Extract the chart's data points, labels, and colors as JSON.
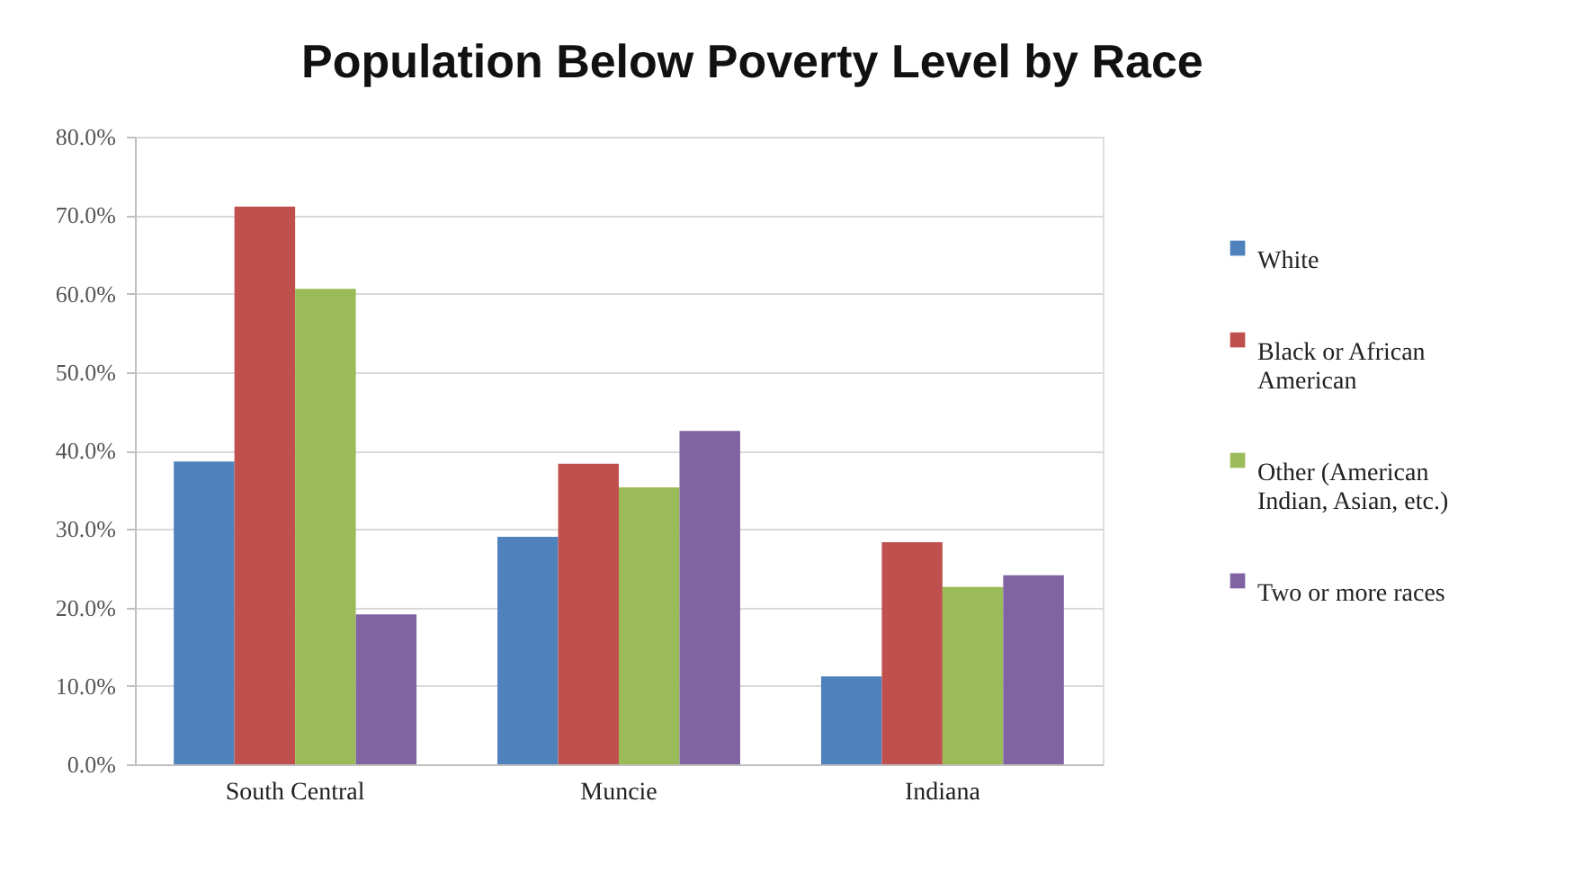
{
  "chart_data": {
    "type": "bar",
    "title": "Population Below Poverty Level by Race",
    "categories": [
      "South Central",
      "Muncie",
      "Indiana"
    ],
    "series": [
      {
        "name": "White",
        "color": "#4f81bd",
        "values": [
          38.6,
          29.0,
          11.2
        ]
      },
      {
        "name": "Black or African American",
        "color": "#c0504d",
        "values": [
          71.1,
          38.3,
          28.3
        ]
      },
      {
        "name": "Other (American Indian, Asian, etc.)",
        "color": "#9bbb59",
        "values": [
          60.6,
          35.3,
          22.6
        ]
      },
      {
        "name": "Two or more races",
        "color": "#8064a2",
        "values": [
          19.1,
          42.5,
          24.1
        ]
      }
    ],
    "ylim": [
      0,
      80
    ],
    "yticks": [
      {
        "value": 0,
        "label": "0.0%"
      },
      {
        "value": 10,
        "label": "10.0%"
      },
      {
        "value": 20,
        "label": "20.0%"
      },
      {
        "value": 30,
        "label": "30.0%"
      },
      {
        "value": 40,
        "label": "40.0%"
      },
      {
        "value": 50,
        "label": "50.0%"
      },
      {
        "value": 60,
        "label": "60.0%"
      },
      {
        "value": 70,
        "label": "70.0%"
      },
      {
        "value": 80,
        "label": "80.0%"
      }
    ],
    "grid": "y",
    "legend": "right"
  }
}
